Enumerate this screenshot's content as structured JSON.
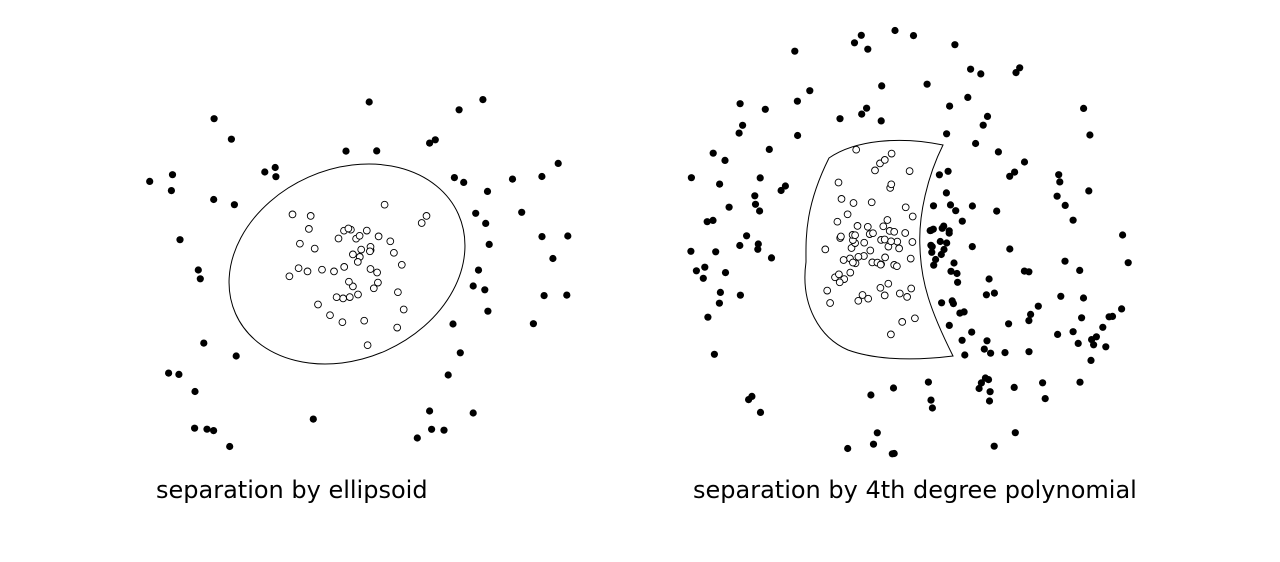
{
  "panels": [
    {
      "caption": "separation by ellipsoid",
      "boundary": "ellipsoid",
      "filled_points": 58,
      "open_points": 50
    },
    {
      "caption": "separation by 4th degree polynomial",
      "boundary": "4th degree polynomial",
      "filled_points": 170,
      "open_points": 75
    }
  ],
  "colors": {
    "filled": "#000000",
    "open_fill": "#ffffff",
    "stroke": "#000000"
  }
}
